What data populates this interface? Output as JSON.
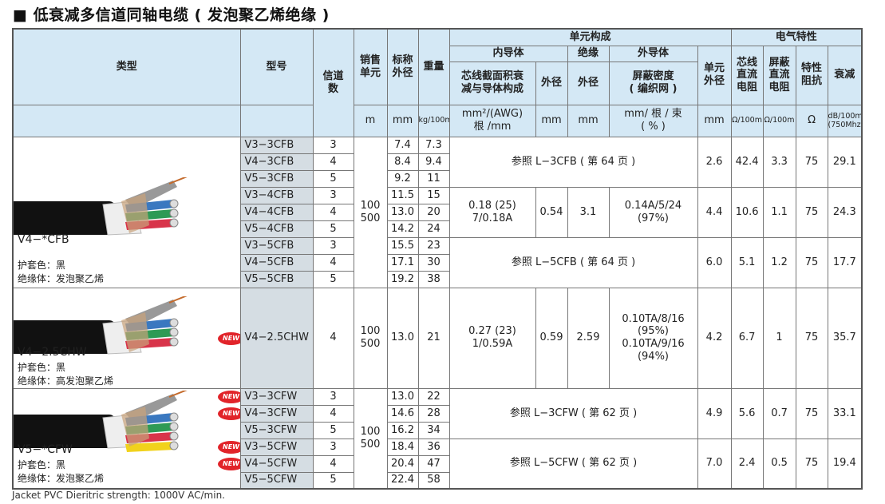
{
  "title": "■ 低衰减多信道同轴电缆 ( 发泡聚乙烯绝缘 )",
  "header": {
    "type": "类型",
    "model": "型号",
    "channels": "信道\n数",
    "sale_unit": "销售\n单元",
    "nominal_od": "标称\n外径",
    "weight": "重量",
    "unit_structure": "单元构成",
    "electrical": "电气特性",
    "inner_conductor": "内导体",
    "insulation": "绝缘",
    "outer_conductor": "外导体",
    "inner_spec": "芯线截面积衰\n减与导体构成",
    "inner_od": "外径",
    "ins_od": "外径",
    "shield_density": "屏蔽密度\n( 编织网 )",
    "unit_od": "单元\n外径",
    "dc_core": "芯线\n直流\n电阻",
    "dc_shield": "屏蔽\n直流\n电阻",
    "impedance": "特性\n阻抗",
    "attenuation": "衰减",
    "units": {
      "sale_unit": "m",
      "nominal_od": "mm",
      "weight": "kg/100m",
      "inner_spec": "mm²/(AWG)\n根 /mm",
      "inner_od": "mm",
      "ins_od": "mm",
      "shield_density": "mm/ 根 / 束\n( % )",
      "unit_od": "mm",
      "dc_core": "Ω/100m",
      "dc_shield": "Ω/100m",
      "impedance": "Ω",
      "attenuation": "dB/100m\n(750Mhz)"
    }
  },
  "new_label": "NEW",
  "colors": {
    "header_bg": "#d4e8f5",
    "model_bg": "#d5dde3",
    "new_badge": "#e1242a"
  },
  "sections": [
    {
      "type_name": "V4−*CFB",
      "jacket": "护套色：黑",
      "insulator": "绝缘体：发泡聚乙烯",
      "sale_unit": "100\n500",
      "rows": [
        {
          "model": "V3−3CFB",
          "ch": "3",
          "od": "7.4",
          "wt": "7.3",
          "new": false
        },
        {
          "model": "V4−3CFB",
          "ch": "4",
          "od": "8.4",
          "wt": "9.4",
          "new": false
        },
        {
          "model": "V5−3CFB",
          "ch": "5",
          "od": "9.2",
          "wt": "11",
          "new": false
        },
        {
          "model": "V3−4CFB",
          "ch": "3",
          "od": "11.5",
          "wt": "15",
          "new": false
        },
        {
          "model": "V4−4CFB",
          "ch": "4",
          "od": "13.0",
          "wt": "20",
          "new": false
        },
        {
          "model": "V5−4CFB",
          "ch": "5",
          "od": "14.2",
          "wt": "24",
          "new": false
        },
        {
          "model": "V3−5CFB",
          "ch": "3",
          "od": "15.5",
          "wt": "23",
          "new": false
        },
        {
          "model": "V4−5CFB",
          "ch": "4",
          "od": "17.1",
          "wt": "30",
          "new": false
        },
        {
          "model": "V5−5CFB",
          "ch": "5",
          "od": "19.2",
          "wt": "38",
          "new": false
        }
      ],
      "groups": [
        {
          "ref": "参照 L−3CFB ( 第 64 页 )",
          "unit_od": "2.6",
          "dc_core": "42.4",
          "dc_shield": "3.3",
          "imp": "75",
          "att": "29.1"
        },
        {
          "inner": "0.18 (25)\n7/0.18A",
          "inner_od": "0.54",
          "ins_od": "3.1",
          "shield": "0.14A/5/24\n(97%)",
          "unit_od": "4.4",
          "dc_core": "10.6",
          "dc_shield": "1.1",
          "imp": "75",
          "att": "24.3"
        },
        {
          "ref": "参照 L−5CFB ( 第 64 页 )",
          "unit_od": "6.0",
          "dc_core": "5.1",
          "dc_shield": "1.2",
          "imp": "75",
          "att": "17.7"
        }
      ]
    },
    {
      "type_name": "V4−2.5CHW",
      "jacket": "护套色：黑",
      "insulator": "绝缘体：高发泡聚乙烯",
      "sale_unit": "100\n500",
      "rows": [
        {
          "model": "V4−2.5CHW",
          "ch": "4",
          "od": "13.0",
          "wt": "21",
          "new": true
        }
      ],
      "groups": [
        {
          "inner": "0.27 (23)\n1/0.59A",
          "inner_od": "0.59",
          "ins_od": "2.59",
          "shield": "0.10TA/8/16\n(95%)\n0.10TA/9/16\n(94%)",
          "unit_od": "4.2",
          "dc_core": "6.7",
          "dc_shield": "1",
          "imp": "75",
          "att": "35.7"
        }
      ]
    },
    {
      "type_name": "V5−*CFW",
      "jacket": "护套色：黑",
      "insulator": "绝缘体：发泡聚乙烯",
      "sale_unit": "100\n500",
      "rows": [
        {
          "model": "V3−3CFW",
          "ch": "3",
          "od": "13.0",
          "wt": "22",
          "new": true
        },
        {
          "model": "V4−3CFW",
          "ch": "4",
          "od": "14.6",
          "wt": "28",
          "new": true
        },
        {
          "model": "V5−3CFW",
          "ch": "5",
          "od": "16.2",
          "wt": "34",
          "new": false
        },
        {
          "model": "V3−5CFW",
          "ch": "3",
          "od": "18.4",
          "wt": "36",
          "new": true
        },
        {
          "model": "V4−5CFW",
          "ch": "4",
          "od": "20.4",
          "wt": "47",
          "new": true
        },
        {
          "model": "V5−5CFW",
          "ch": "5",
          "od": "22.4",
          "wt": "58",
          "new": false
        }
      ],
      "groups": [
        {
          "ref": "参照 L−3CFW ( 第 62 页 )",
          "unit_od": "4.9",
          "dc_core": "5.6",
          "dc_shield": "0.7",
          "imp": "75",
          "att": "33.1"
        },
        {
          "ref": "参照 L−5CFW ( 第 62 页 )",
          "unit_od": "7.0",
          "dc_core": "2.4",
          "dc_shield": "0.5",
          "imp": "75",
          "att": "19.4"
        }
      ]
    }
  ],
  "footer": "Jacket PVC   Dieritric strength: 1000V AC/min."
}
